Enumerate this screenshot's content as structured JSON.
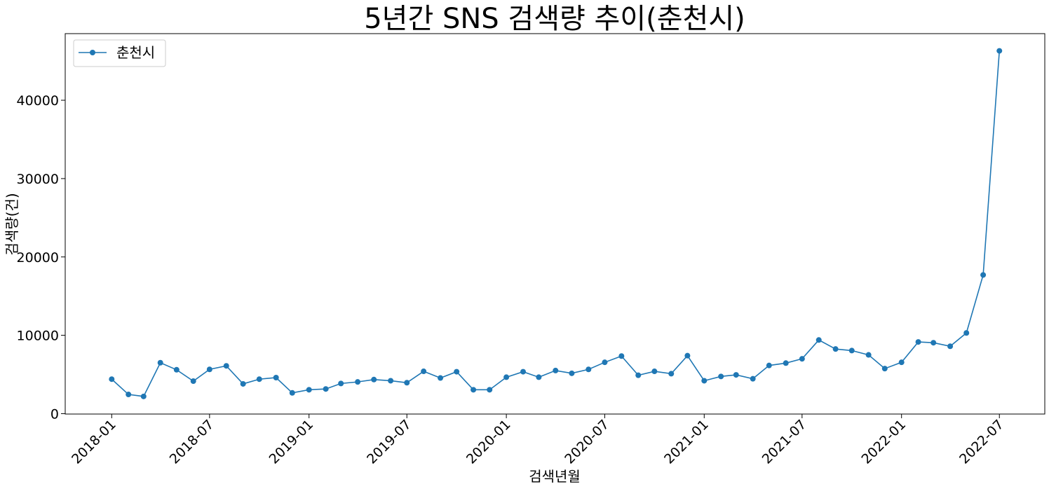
{
  "chart_data": {
    "type": "line",
    "title": "5년간 SNS 검색량 추이(춘천시)",
    "xlabel": "검색년월",
    "ylabel": "검색량(건)",
    "x": [
      "2018-01",
      "2018-02",
      "2018-03",
      "2018-04",
      "2018-05",
      "2018-06",
      "2018-07",
      "2018-08",
      "2018-09",
      "2018-10",
      "2018-11",
      "2018-12",
      "2019-01",
      "2019-02",
      "2019-03",
      "2019-04",
      "2019-05",
      "2019-06",
      "2019-07",
      "2019-08",
      "2019-09",
      "2019-10",
      "2019-11",
      "2019-12",
      "2020-01",
      "2020-02",
      "2020-03",
      "2020-04",
      "2020-05",
      "2020-06",
      "2020-07",
      "2020-08",
      "2020-09",
      "2020-10",
      "2020-11",
      "2020-12",
      "2021-01",
      "2021-02",
      "2021-03",
      "2021-04",
      "2021-05",
      "2021-06",
      "2021-07",
      "2021-08",
      "2021-09",
      "2021-10",
      "2021-11",
      "2021-12",
      "2022-01",
      "2022-02",
      "2022-03",
      "2022-04",
      "2022-05",
      "2022-06",
      "2022-07"
    ],
    "series": [
      {
        "name": "춘천시",
        "color": "#1f77b4",
        "values": [
          4400,
          2450,
          2200,
          6500,
          5600,
          4150,
          5650,
          6100,
          3800,
          4400,
          4600,
          2650,
          3050,
          3150,
          3850,
          4050,
          4350,
          4200,
          3950,
          5400,
          4550,
          5350,
          3050,
          3050,
          4650,
          5350,
          4650,
          5500,
          5150,
          5650,
          6550,
          7350,
          4900,
          5400,
          5100,
          7400,
          4200,
          4750,
          4950,
          4450,
          6150,
          6450,
          7000,
          9400,
          8250,
          8050,
          7500,
          5750,
          6550,
          9150,
          9050,
          8600,
          10300,
          17700,
          46300
        ]
      }
    ],
    "xticks": [
      "2018-01",
      "2018-07",
      "2019-01",
      "2019-07",
      "2020-01",
      "2020-07",
      "2021-01",
      "2021-07",
      "2022-01",
      "2022-07"
    ],
    "yticks": [
      0,
      10000,
      20000,
      30000,
      40000
    ],
    "ylim": [
      -50,
      48500
    ],
    "xlim": [
      "2017-10-07",
      "2022-09-23"
    ],
    "grid": false,
    "legend_position": "top-left"
  }
}
